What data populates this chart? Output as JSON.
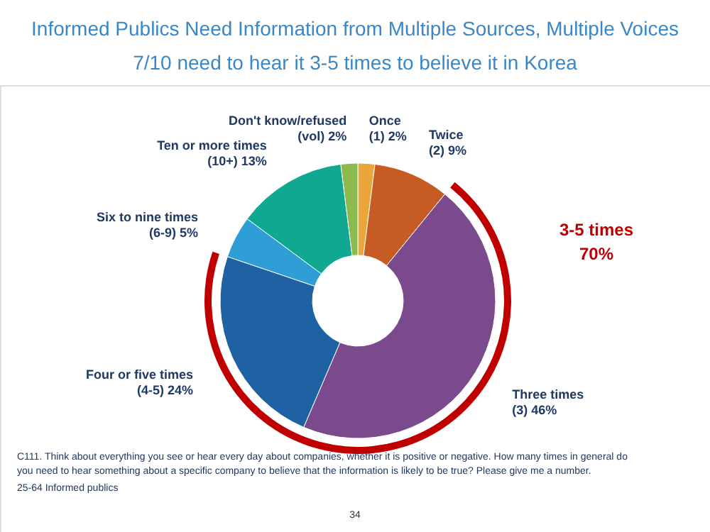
{
  "chart_data": {
    "type": "donut",
    "title": "Informed Publics Need Information from Multiple Sources, Multiple Voices",
    "subtitle": "7/10 need to hear it 3-5 times to believe it in Korea",
    "categories": [
      "Once\n(1)",
      "Twice\n(2)",
      "Three times\n(3)",
      "Four or five times\n(4-5)",
      "Six to nine times\n(6-9)",
      "Ten or more times\n(10+)",
      "Don't know/refused\n(vol)"
    ],
    "values": [
      2,
      9,
      46,
      24,
      5,
      13,
      2
    ],
    "value_labels": [
      "2%",
      "9%",
      "46%",
      "24%",
      "5%",
      "13%",
      "2%"
    ],
    "colors": [
      "#eaa63a",
      "#c65c24",
      "#7b4a8c",
      "#1f62a3",
      "#2f9dd6",
      "#10a890",
      "#8cba4c"
    ],
    "annotations": [
      "3-5 times\n70%",
      "C111. Think about everything you see or hear every day about companies, whether it is positive or negative. How many times in general do\nyou need to hear something about a specific company to believe that the information is likely to be true? Please give me a number.",
      "25-64 Informed publics",
      "34"
    ]
  }
}
